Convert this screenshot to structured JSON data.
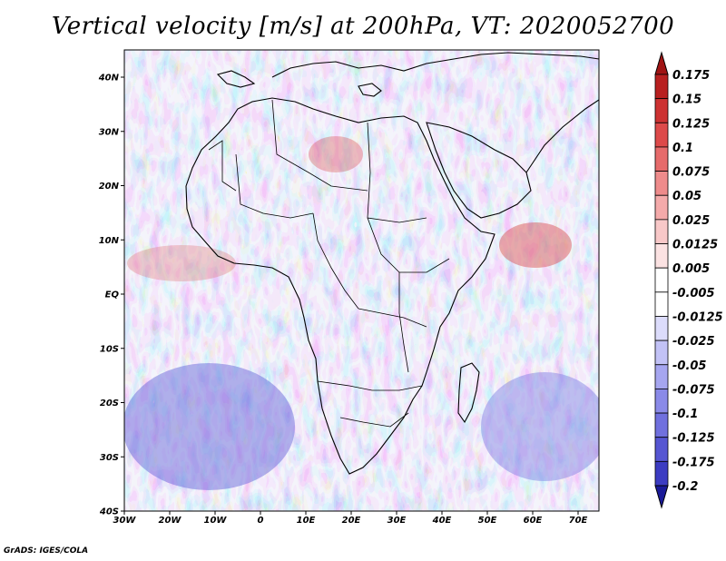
{
  "title": "Vertical velocity [m/s] at 200hPa, VT: 2020052700",
  "footer": "GrADS: IGES/COLA",
  "map": {
    "lat_ticks": [
      "40N",
      "30N",
      "20N",
      "10N",
      "EQ",
      "10S",
      "20S",
      "30S",
      "40S"
    ],
    "lon_ticks": [
      "30W",
      "20W",
      "10W",
      "0",
      "10E",
      "20E",
      "30E",
      "40E",
      "50E",
      "60E",
      "70E"
    ]
  },
  "colorbar": {
    "levels": [
      {
        "label": "0.175",
        "color": "#a01414"
      },
      {
        "label": "0.15",
        "color": "#b82020"
      },
      {
        "label": "0.125",
        "color": "#cd3232"
      },
      {
        "label": "0.1",
        "color": "#dd4a4a"
      },
      {
        "label": "0.075",
        "color": "#e66b6b"
      },
      {
        "label": "0.05",
        "color": "#ee8b8b"
      },
      {
        "label": "0.025",
        "color": "#f4aaaa"
      },
      {
        "label": "0.0125",
        "color": "#f8c8c8"
      },
      {
        "label": "0.005",
        "color": "#fbe2e2"
      },
      {
        "label": "-0.005",
        "color": "#ffffff"
      },
      {
        "label": "-0.0125",
        "color": "#dcdcfb"
      },
      {
        "label": "-0.025",
        "color": "#c2c2f6"
      },
      {
        "label": "-0.05",
        "color": "#a6a6f0"
      },
      {
        "label": "-0.075",
        "color": "#8a8ae8"
      },
      {
        "label": "-0.1",
        "color": "#7070de"
      },
      {
        "label": "-0.125",
        "color": "#5656d2"
      },
      {
        "label": "-0.175",
        "color": "#3c3cc2"
      },
      {
        "label": "-0.2",
        "color": "#2828a8"
      }
    ],
    "top_color": "#a01414",
    "bottom_color": "#1a1a98"
  }
}
